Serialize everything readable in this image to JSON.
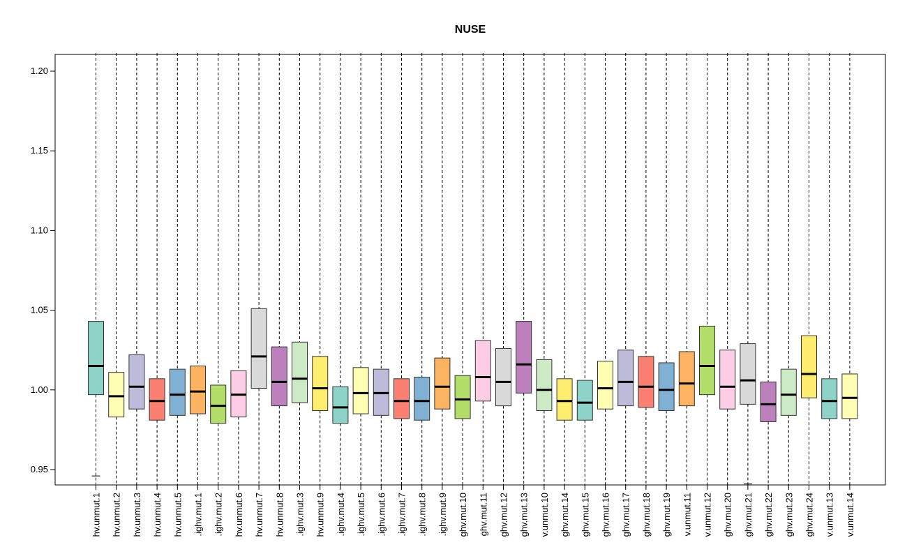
{
  "chart_data": {
    "type": "boxplot",
    "title": "NUSE",
    "xlabel": "",
    "ylabel": "",
    "ylim": [
      0.94,
      1.2
    ],
    "yticks": [
      "0.95",
      "1.00",
      "1.05",
      "1.10",
      "1.15",
      "1.20"
    ],
    "ytick_values": [
      0.95,
      1.0,
      1.05,
      1.1,
      1.15,
      1.2
    ],
    "grid": false,
    "legend": "none",
    "whiskers_extend_to_top": true,
    "categories": [
      "hv.unmut.1",
      "hv.unmut.2",
      "hv.unmut.3",
      "hv.unmut.4",
      "hv.unmut.5",
      ".ighv.mut.1",
      ".ighv.mut.2",
      "hv.unmut.6",
      "hv.unmut.7",
      "hv.unmut.8",
      ".ighv.mut.3",
      "hv.unmut.9",
      ".ighv.mut.4",
      ".ighv.mut.5",
      ".ighv.mut.6",
      ".ighv.mut.7",
      ".ighv.mut.8",
      ".ighv.mut.9",
      "ghv.mut.10",
      "ghv.mut.11",
      "ghv.mut.12",
      "ghv.mut.13",
      "v.unmut.10",
      "ghv.mut.14",
      "ghv.mut.15",
      "ghv.mut.16",
      "ghv.mut.17",
      "ghv.mut.18",
      "ghv.mut.19",
      "v.unmut.11",
      "v.unmut.12",
      "ghv.mut.20",
      "ghv.mut.21",
      "ghv.mut.22",
      "ghv.mut.23",
      "ghv.mut.24",
      "v.unmut.13",
      "v.unmut.14"
    ],
    "boxes": [
      {
        "q1": 0.997,
        "median": 1.015,
        "q3": 1.043,
        "low_tick": 0.946,
        "color": "#8DD3C7"
      },
      {
        "q1": 0.983,
        "median": 0.996,
        "q3": 1.011,
        "color": "#FFFFB3"
      },
      {
        "q1": 0.988,
        "median": 1.002,
        "q3": 1.022,
        "color": "#BEBADA"
      },
      {
        "q1": 0.981,
        "median": 0.993,
        "q3": 1.007,
        "color": "#FB8072"
      },
      {
        "q1": 0.984,
        "median": 0.997,
        "q3": 1.013,
        "color": "#80B1D3"
      },
      {
        "q1": 0.985,
        "median": 0.999,
        "q3": 1.015,
        "color": "#FDB462"
      },
      {
        "q1": 0.979,
        "median": 0.99,
        "q3": 1.003,
        "color": "#B3DE69"
      },
      {
        "q1": 0.983,
        "median": 0.997,
        "q3": 1.012,
        "color": "#FCCDE5"
      },
      {
        "q1": 1.001,
        "median": 1.021,
        "q3": 1.051,
        "color": "#D9D9D9"
      },
      {
        "q1": 0.99,
        "median": 1.005,
        "q3": 1.027,
        "color": "#BC80BD"
      },
      {
        "q1": 0.992,
        "median": 1.007,
        "q3": 1.03,
        "color": "#CCEBC5"
      },
      {
        "q1": 0.987,
        "median": 1.001,
        "q3": 1.021,
        "color": "#FFED6F"
      },
      {
        "q1": 0.979,
        "median": 0.989,
        "q3": 1.002,
        "color": "#8DD3C7"
      },
      {
        "q1": 0.985,
        "median": 0.998,
        "q3": 1.014,
        "color": "#FFFFB3"
      },
      {
        "q1": 0.984,
        "median": 0.998,
        "q3": 1.013,
        "color": "#BEBADA"
      },
      {
        "q1": 0.982,
        "median": 0.993,
        "q3": 1.007,
        "color": "#FB8072"
      },
      {
        "q1": 0.981,
        "median": 0.993,
        "q3": 1.008,
        "color": "#80B1D3"
      },
      {
        "q1": 0.988,
        "median": 1.002,
        "q3": 1.02,
        "color": "#FDB462"
      },
      {
        "q1": 0.982,
        "median": 0.994,
        "q3": 1.009,
        "color": "#B3DE69"
      },
      {
        "q1": 0.993,
        "median": 1.008,
        "q3": 1.031,
        "color": "#FCCDE5"
      },
      {
        "q1": 0.99,
        "median": 1.005,
        "q3": 1.026,
        "color": "#D9D9D9"
      },
      {
        "q1": 0.998,
        "median": 1.016,
        "q3": 1.043,
        "color": "#BC80BD"
      },
      {
        "q1": 0.987,
        "median": 1.0,
        "q3": 1.019,
        "color": "#CCEBC5"
      },
      {
        "q1": 0.981,
        "median": 0.993,
        "q3": 1.007,
        "color": "#FFED6F"
      },
      {
        "q1": 0.981,
        "median": 0.992,
        "q3": 1.006,
        "color": "#8DD3C7"
      },
      {
        "q1": 0.988,
        "median": 1.001,
        "q3": 1.018,
        "color": "#FFFFB3"
      },
      {
        "q1": 0.99,
        "median": 1.005,
        "q3": 1.025,
        "color": "#BEBADA"
      },
      {
        "q1": 0.989,
        "median": 1.002,
        "q3": 1.021,
        "color": "#FB8072"
      },
      {
        "q1": 0.987,
        "median": 1.0,
        "q3": 1.017,
        "color": "#80B1D3"
      },
      {
        "q1": 0.99,
        "median": 1.004,
        "q3": 1.024,
        "color": "#FDB462"
      },
      {
        "q1": 0.997,
        "median": 1.015,
        "q3": 1.04,
        "color": "#B3DE69"
      },
      {
        "q1": 0.988,
        "median": 1.002,
        "q3": 1.025,
        "color": "#FCCDE5"
      },
      {
        "q1": 0.991,
        "median": 1.006,
        "q3": 1.029,
        "low_tick": 0.941,
        "color": "#D9D9D9"
      },
      {
        "q1": 0.98,
        "median": 0.991,
        "q3": 1.005,
        "color": "#BC80BD"
      },
      {
        "q1": 0.984,
        "median": 0.997,
        "q3": 1.013,
        "color": "#CCEBC5"
      },
      {
        "q1": 0.995,
        "median": 1.01,
        "q3": 1.034,
        "color": "#FFED6F"
      },
      {
        "q1": 0.982,
        "median": 0.993,
        "q3": 1.007,
        "color": "#8DD3C7"
      },
      {
        "q1": 0.982,
        "median": 0.995,
        "q3": 1.01,
        "color": "#FFFFB3"
      }
    ]
  }
}
